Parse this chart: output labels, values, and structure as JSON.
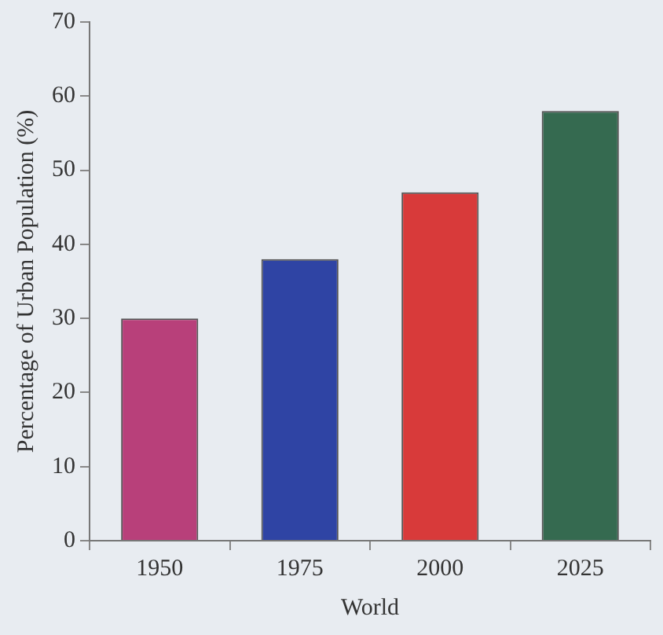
{
  "chart_data": {
    "type": "bar",
    "xlabel": "World",
    "ylabel": "Percentage of Urban Population (%)",
    "categories": [
      "1950",
      "1975",
      "2000",
      "2025"
    ],
    "values": [
      30,
      38,
      47,
      58
    ],
    "colors": [
      "#b8407a",
      "#2f44a4",
      "#d83a3a",
      "#356a50"
    ],
    "ylim": [
      0,
      70
    ],
    "yticks": [
      0,
      10,
      20,
      30,
      40,
      50,
      60,
      70
    ],
    "grid": false,
    "legend": false
  }
}
